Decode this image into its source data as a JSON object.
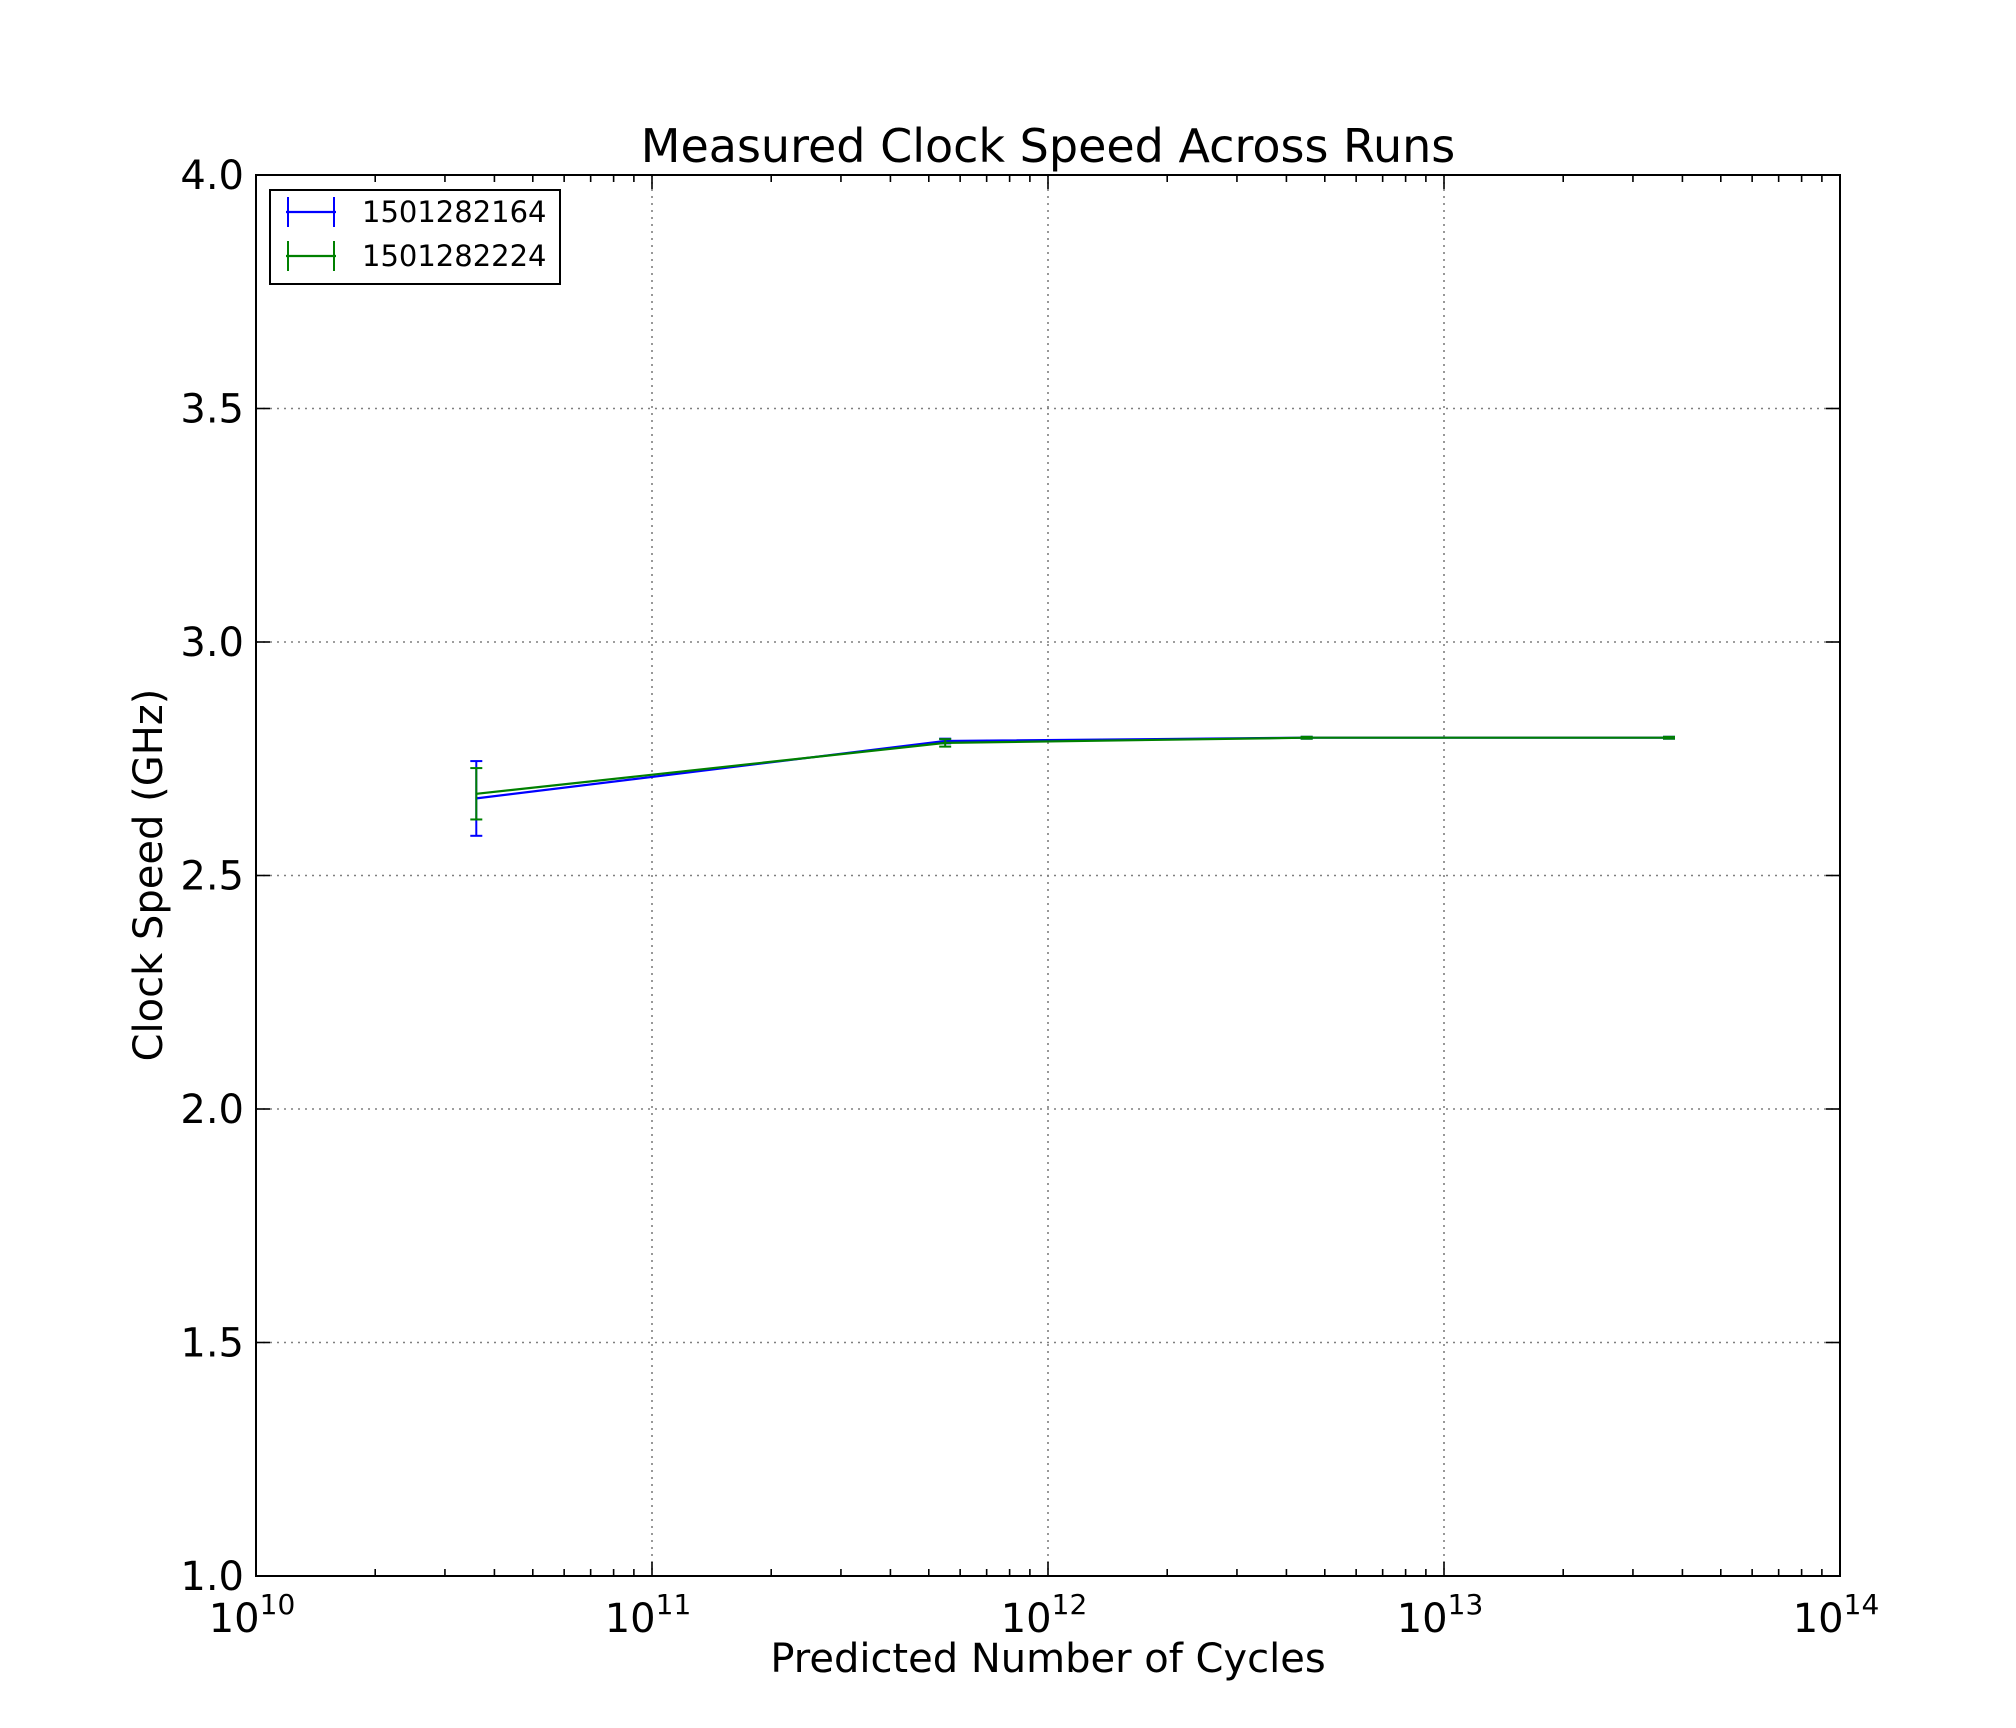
{
  "chart_data": {
    "type": "line",
    "title": "Measured Clock Speed Across Runs",
    "xlabel": "Predicted Number of Cycles",
    "ylabel": "Clock Speed (GHz)",
    "xscale": "log",
    "xlim": [
      10000000000,
      100000000000000
    ],
    "ylim": [
      1.0,
      4.0
    ],
    "grid": true,
    "legend_position": "top-left",
    "error_bars": true,
    "x_ticks": [
      {
        "base": "10",
        "exp": "10",
        "value": 10000000000
      },
      {
        "base": "10",
        "exp": "11",
        "value": 100000000000
      },
      {
        "base": "10",
        "exp": "12",
        "value": 1000000000000
      },
      {
        "base": "10",
        "exp": "13",
        "value": 10000000000000
      },
      {
        "base": "10",
        "exp": "14",
        "value": 100000000000000
      }
    ],
    "y_ticks": [
      {
        "label": "1.0",
        "value": 1.0
      },
      {
        "label": "1.5",
        "value": 1.5
      },
      {
        "label": "2.0",
        "value": 2.0
      },
      {
        "label": "2.5",
        "value": 2.5
      },
      {
        "label": "3.0",
        "value": 3.0
      },
      {
        "label": "3.5",
        "value": 3.5
      },
      {
        "label": "4.0",
        "value": 4.0
      }
    ],
    "series": [
      {
        "name": "1501282164",
        "color": "#0000ff",
        "points": [
          {
            "x": 36000000000,
            "y": 2.665,
            "err": 0.08
          },
          {
            "x": 550000000000,
            "y": 2.788,
            "err": 0.005
          },
          {
            "x": 4500000000000,
            "y": 2.795,
            "err": 0.002
          },
          {
            "x": 37000000000000,
            "y": 2.795,
            "err": 0.002
          }
        ]
      },
      {
        "name": "1501282224",
        "color": "#008000",
        "points": [
          {
            "x": 36000000000,
            "y": 2.675,
            "err": 0.055
          },
          {
            "x": 550000000000,
            "y": 2.784,
            "err": 0.008
          },
          {
            "x": 4500000000000,
            "y": 2.795,
            "err": 0.002
          },
          {
            "x": 37000000000000,
            "y": 2.795,
            "err": 0.002
          }
        ]
      }
    ]
  }
}
